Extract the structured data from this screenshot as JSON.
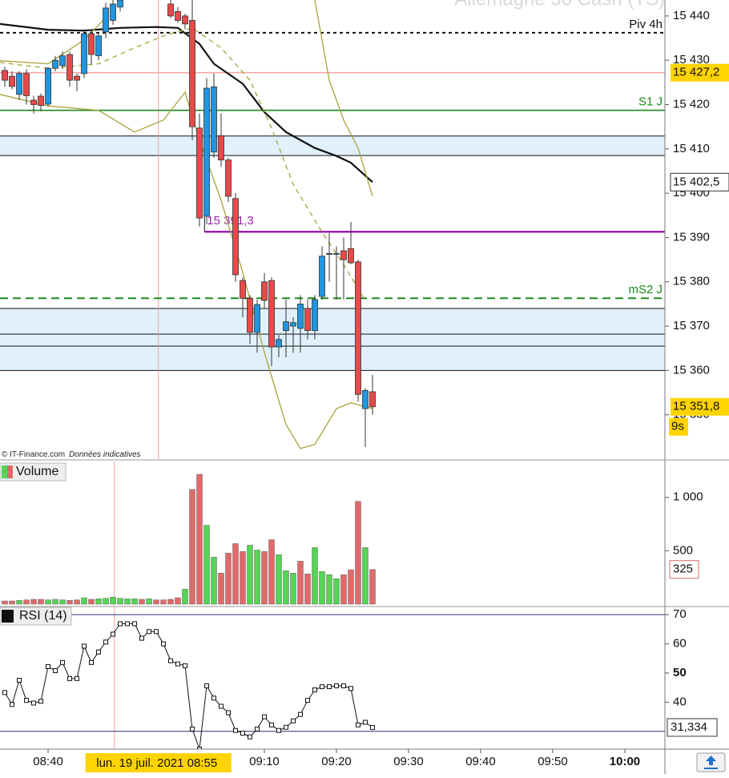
{
  "chart_data": {
    "type": "candlestick",
    "watermark": "Allemagne 30 Cash (TS)",
    "credit": "© IT-Finance.com",
    "credit_note": "Données indicatives",
    "xlim": [
      513.33,
      605.56
    ],
    "xticks": [
      {
        "value": 520,
        "label": "08:40"
      },
      {
        "value": 550,
        "label": "09:10"
      },
      {
        "value": 560,
        "label": "09:20"
      },
      {
        "value": 570,
        "label": "09:30"
      },
      {
        "value": 580,
        "label": "09:40"
      },
      {
        "value": 590,
        "label": "09:50"
      },
      {
        "value": 600,
        "label": "10:00"
      }
    ],
    "x_highlight": {
      "value": 535.3,
      "label": "lun. 19 juil. 2021 08:55"
    },
    "lower_cursor": 529.2,
    "price": {
      "ylim": [
        15340,
        15443.6
      ],
      "yticks": [
        {
          "value": 15440,
          "label": "15 440"
        },
        {
          "value": 15430,
          "label": "15 430"
        },
        {
          "value": 15420,
          "label": "15 420"
        },
        {
          "value": 15410,
          "label": "15 410"
        },
        {
          "value": 15400,
          "label": "15 400"
        },
        {
          "value": 15390,
          "label": "15 390"
        },
        {
          "value": 15380,
          "label": "15 380"
        },
        {
          "value": 15370,
          "label": "15 370"
        },
        {
          "value": 15360,
          "label": "15 360"
        },
        {
          "value": 15350,
          "label": "15 350"
        }
      ],
      "up_color": "#2196e0",
      "down_color": "#e84a4a",
      "x": [
        514,
        515,
        516,
        517,
        518,
        519,
        520,
        521,
        522,
        523,
        524,
        525,
        526,
        527,
        528,
        529,
        530,
        537,
        538,
        539,
        540,
        541,
        542,
        543,
        544,
        545,
        546,
        547,
        548,
        549,
        550,
        551,
        552,
        553,
        554,
        555,
        556,
        557,
        558,
        559,
        560,
        561,
        562,
        563,
        564,
        565
      ],
      "open": [
        15427.7,
        15426.4,
        15422.3,
        15427,
        15421,
        15421.9,
        15420.1,
        15428.2,
        15428.8,
        15431.3,
        15426.4,
        15427,
        15436,
        15431,
        15436.4,
        15439,
        15442,
        15442.7,
        15441,
        15440,
        15439,
        15414.7,
        15394.8,
        15409.3,
        15413,
        15407.5,
        15398.8,
        15380.3,
        15376.3,
        15368.6,
        15380,
        15380.3,
        15365.3,
        15369,
        15370,
        15369.5,
        15374,
        15369,
        15376.7,
        15386.2,
        15386.2,
        15387,
        15387.5,
        15384.5,
        15351.4,
        15355.2
      ],
      "high": [
        15428.5,
        15427.5,
        15427.5,
        15428,
        15422,
        15422.5,
        15428.5,
        15431,
        15432,
        15432,
        15427,
        15437,
        15437,
        15436,
        15443,
        15443.6,
        15443.6,
        15443.6,
        15442,
        15440.5,
        15443.6,
        15418,
        15426,
        15427,
        15418,
        15408,
        15400,
        15381,
        15377,
        15376,
        15382,
        15381,
        15368,
        15376,
        15372,
        15377,
        15376,
        15377,
        15388,
        15391,
        15388,
        15390,
        15393.5,
        15385,
        15356,
        15359
      ],
      "low": [
        15424,
        15423.5,
        15421,
        15420,
        15418,
        15418.5,
        15419.5,
        15427.5,
        15428,
        15424,
        15423,
        15426,
        15429,
        15430,
        15435,
        15438,
        15441,
        15439.5,
        15438.5,
        15437,
        15412,
        15392.5,
        15393,
        15408,
        15406,
        15398,
        15380,
        15372,
        15366,
        15364,
        15374,
        15361,
        15363,
        15363,
        15364,
        15364,
        15367,
        15367,
        15376,
        15380,
        15376,
        15376,
        15384,
        15353,
        15342.7,
        15350
      ],
      "close": [
        15425.5,
        15424.1,
        15427,
        15422,
        15420,
        15419.8,
        15428.2,
        15430,
        15431,
        15425.5,
        15425.5,
        15436,
        15431.3,
        15435.5,
        15441.8,
        15442.7,
        15443.6,
        15440,
        15439,
        15438.2,
        15415,
        15394.4,
        15423.7,
        15424,
        15407.5,
        15399.3,
        15381.6,
        15376.3,
        15368.6,
        15374.9,
        15375.8,
        15365.3,
        15367,
        15371,
        15370.8,
        15375,
        15369,
        15376,
        15385.8,
        15386.4,
        15386.4,
        15385,
        15384.3,
        15354.6,
        15355.5,
        15351.8
      ],
      "overlays": [
        {
          "color": "#111111",
          "width": 2.2,
          "dash": false,
          "x": [
            513.33,
            520,
            525,
            530,
            535,
            538,
            541,
            543,
            547,
            550,
            553,
            557,
            560,
            562,
            565
          ],
          "values": [
            15438.2,
            15436.9,
            15436.7,
            15437.3,
            15437.5,
            15437.3,
            15433.7,
            15429.2,
            15424.7,
            15418.3,
            15413.8,
            15410.2,
            15408.4,
            15406.9,
            15402.5
          ]
        },
        {
          "color": "#a7a23a",
          "width": 1.3,
          "dash": true,
          "x": [
            513.33,
            520,
            527,
            532,
            536,
            540,
            544,
            548,
            551,
            554,
            558,
            561,
            564
          ],
          "values": [
            15429.5,
            15428.2,
            15429.2,
            15432.8,
            15435.5,
            15437.3,
            15432.8,
            15425.5,
            15414.7,
            15402,
            15391.2,
            15383.9,
            15375.8
          ]
        },
        {
          "color": "#a7a23a",
          "width": 1.3,
          "dash": false,
          "x": [
            513.33,
            520,
            525,
            528,
            530,
            557,
            559,
            561,
            563,
            565
          ],
          "values": [
            15429.9,
            15429.2,
            15434.6,
            15439.6,
            null,
            15443.6,
            15425.5,
            15416.5,
            15410.2,
            15399.3
          ]
        },
        {
          "color": "#a7a23a",
          "width": 1.3,
          "dash": false,
          "x": [
            513.33,
            520,
            527,
            532,
            536,
            539,
            541,
            544,
            547,
            550,
            553,
            555,
            557,
            560,
            562,
            565
          ],
          "values": [
            15422.3,
            15419.7,
            15418.7,
            15413.8,
            15416.5,
            15422.8,
            15412,
            15398.4,
            15382.1,
            15364.1,
            15347.8,
            15342.4,
            15343.3,
            15351.4,
            15352.7,
            15351.4
          ]
        }
      ],
      "zones": [
        [
          15408.5,
          15412.9
        ],
        [
          15368.2,
          15374
        ],
        [
          15365.5,
          15368.2
        ],
        [
          15360,
          15365.5
        ]
      ],
      "zone_color": "#e0f1fc",
      "levels": [
        {
          "value": 15436.2,
          "label": "Piv 4h",
          "color": "#111111",
          "dash": true
        },
        {
          "value": 15427.2,
          "color": "#f0a8a8",
          "dash": false
        },
        {
          "value": 15418.7,
          "label": "S1 J",
          "color": "#1b8a1b",
          "dash": false
        },
        {
          "value": 15391.3,
          "label": "15 391,3",
          "color": "#9a1fb2",
          "dash": false,
          "from": 541.7
        },
        {
          "value": 15376.3,
          "label": "mS2 J",
          "color": "#1b8a1b",
          "dash": true
        }
      ],
      "price_labels": [
        {
          "value": 15427.2,
          "label": "15 427,2",
          "bg": "#ffd400"
        },
        {
          "value": 15402.5,
          "label": "15 402,5",
          "bg": "#ffffff"
        },
        {
          "value": 15351.8,
          "label": "15 351,8",
          "bg": "#ffd400"
        }
      ],
      "countdown": {
        "label": "9s",
        "bg": "#ffd400"
      }
    },
    "volume": {
      "legend": "Volume",
      "ylim": [
        0,
        1336
      ],
      "yticks": [
        {
          "value": 1000,
          "label": "1 000"
        },
        500
      ],
      "x": [
        514,
        515,
        516,
        517,
        518,
        519,
        520,
        521,
        522,
        523,
        524,
        525,
        526,
        527,
        528,
        529,
        530,
        531,
        532,
        533,
        534,
        535,
        536,
        537,
        538,
        539,
        540,
        541,
        542,
        543,
        544,
        545,
        546,
        547,
        548,
        549,
        550,
        551,
        552,
        553,
        554,
        555,
        556,
        557,
        558,
        559,
        560,
        561,
        562,
        563,
        564,
        565
      ],
      "values": [
        30,
        30,
        35,
        40,
        45,
        45,
        40,
        45,
        40,
        35,
        40,
        60,
        45,
        50,
        55,
        65,
        55,
        50,
        50,
        45,
        50,
        40,
        40,
        45,
        60,
        140,
        1075,
        1216,
        739,
        440,
        291,
        478,
        567,
        493,
        552,
        507,
        493,
        604,
        463,
        313,
        291,
        403,
        284,
        530,
        306,
        276,
        239,
        276,
        321,
        963,
        530,
        325
      ],
      "colors": [
        "#e06a6a",
        "#e06a6a",
        "#55d455",
        "#e06a6a",
        "#e06a6a",
        "#e06a6a",
        "#55d455",
        "#55d455",
        "#55d455",
        "#e06a6a",
        "#e06a6a",
        "#55d455",
        "#e06a6a",
        "#55d455",
        "#55d455",
        "#55d455",
        "#55d455",
        "#55d455",
        "#55d455",
        "#e06a6a",
        "#55d455",
        "#e06a6a",
        "#e06a6a",
        "#e06a6a",
        "#e06a6a",
        "#55d455",
        "#e06a6a",
        "#e06a6a",
        "#55d455",
        "#55d455",
        "#e06a6a",
        "#e06a6a",
        "#e06a6a",
        "#e06a6a",
        "#55d455",
        "#55d455",
        "#e06a6a",
        "#e06a6a",
        "#55d455",
        "#55d455",
        "#55d455",
        "#e06a6a",
        "#e06a6a",
        "#55d455",
        "#55d455",
        "#55d455",
        "#55d455",
        "#e06a6a",
        "#e06a6a",
        "#e06a6a",
        "#55d455",
        "#e06a6a"
      ],
      "last_label": {
        "value": 325,
        "label": "325"
      }
    },
    "rsi": {
      "legend": "RSI (14)",
      "ylim": [
        23.9,
        72.5
      ],
      "yticks": [
        70,
        60,
        50,
        40
      ],
      "hlines": [
        70,
        30
      ],
      "color": "#111111",
      "x": [
        514,
        515,
        516,
        517,
        518,
        519,
        520,
        521,
        522,
        523,
        524,
        525,
        526,
        527,
        528,
        529,
        530,
        531,
        532,
        533,
        534,
        535,
        536,
        537,
        538,
        539,
        540,
        541,
        542,
        543,
        544,
        545,
        546,
        547,
        548,
        549,
        550,
        551,
        552,
        553,
        554,
        555,
        556,
        557,
        558,
        559,
        560,
        561,
        562,
        563,
        564,
        565
      ],
      "values": [
        43.3,
        39.2,
        47.5,
        40.6,
        39.7,
        40.3,
        52.2,
        50.8,
        53.6,
        48.1,
        48.1,
        59.2,
        53.6,
        57.2,
        60.6,
        63.3,
        66.9,
        66.9,
        66.9,
        61.9,
        64.2,
        64.2,
        60,
        54.2,
        53.1,
        52.5,
        30.8,
        23.9,
        45.6,
        41.4,
        38.6,
        36.4,
        30.3,
        29.4,
        28.1,
        30.8,
        35,
        32.2,
        30.3,
        31.4,
        33.6,
        35.8,
        40.6,
        44.2,
        45.3,
        45.3,
        45.6,
        45.6,
        44.7,
        32.2,
        33.1,
        31.334
      ],
      "last_label": {
        "value": 31.334,
        "label": "31,334"
      }
    }
  }
}
